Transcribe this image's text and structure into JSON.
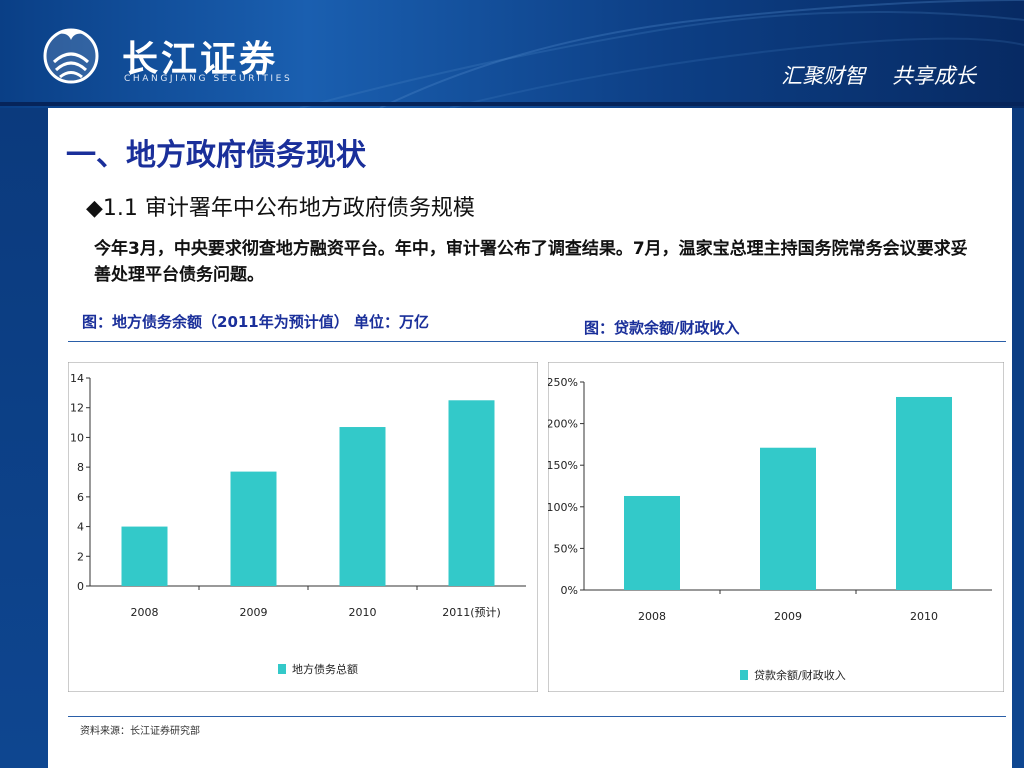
{
  "header": {
    "logo_cn": "长江证券",
    "logo_en": "CHANGJIANG SECURITIES",
    "slogan": "汇聚财智    共享成长"
  },
  "slide": {
    "title": "一、地方政府债务现状",
    "subtitle": "◆1.1 审计署年中公布地方政府债务规模",
    "body": "今年3月，中央要求彻查地方融资平台。年中，审计署公布了调查结果。7月，温家宝总理主持国务院常务会议要求妥善处理平台债务问题。",
    "fig1_caption": "图：地方债务余额（2011年为预计值） 单位：万亿",
    "fig2_caption": "图：贷款余额/财政收入",
    "source": "资料来源：长江证券研究部"
  },
  "colors": {
    "bar": "#33c9c9",
    "accent": "#1a2f9a",
    "header": "#0d3f85"
  },
  "chart_data": [
    {
      "type": "bar",
      "categories": [
        "2008",
        "2009",
        "2010",
        "2011(预计)"
      ],
      "series": [
        {
          "name": "地方债务总额",
          "values": [
            4.0,
            7.7,
            10.7,
            12.5
          ]
        }
      ],
      "yticks": [
        "0",
        "2",
        "4",
        "6",
        "8",
        "10",
        "12",
        "14"
      ],
      "ylim": [
        0,
        14
      ],
      "legend": "bottom-center",
      "grid": false
    },
    {
      "type": "bar",
      "categories": [
        "2008",
        "2009",
        "2010"
      ],
      "series": [
        {
          "name": "贷款余额/财政收入",
          "values": [
            113,
            171,
            232
          ]
        }
      ],
      "yticks": [
        "0%",
        "50%",
        "100%",
        "150%",
        "200%",
        "250%"
      ],
      "ylim": [
        0,
        250
      ],
      "legend": "bottom-center",
      "grid": false
    }
  ]
}
